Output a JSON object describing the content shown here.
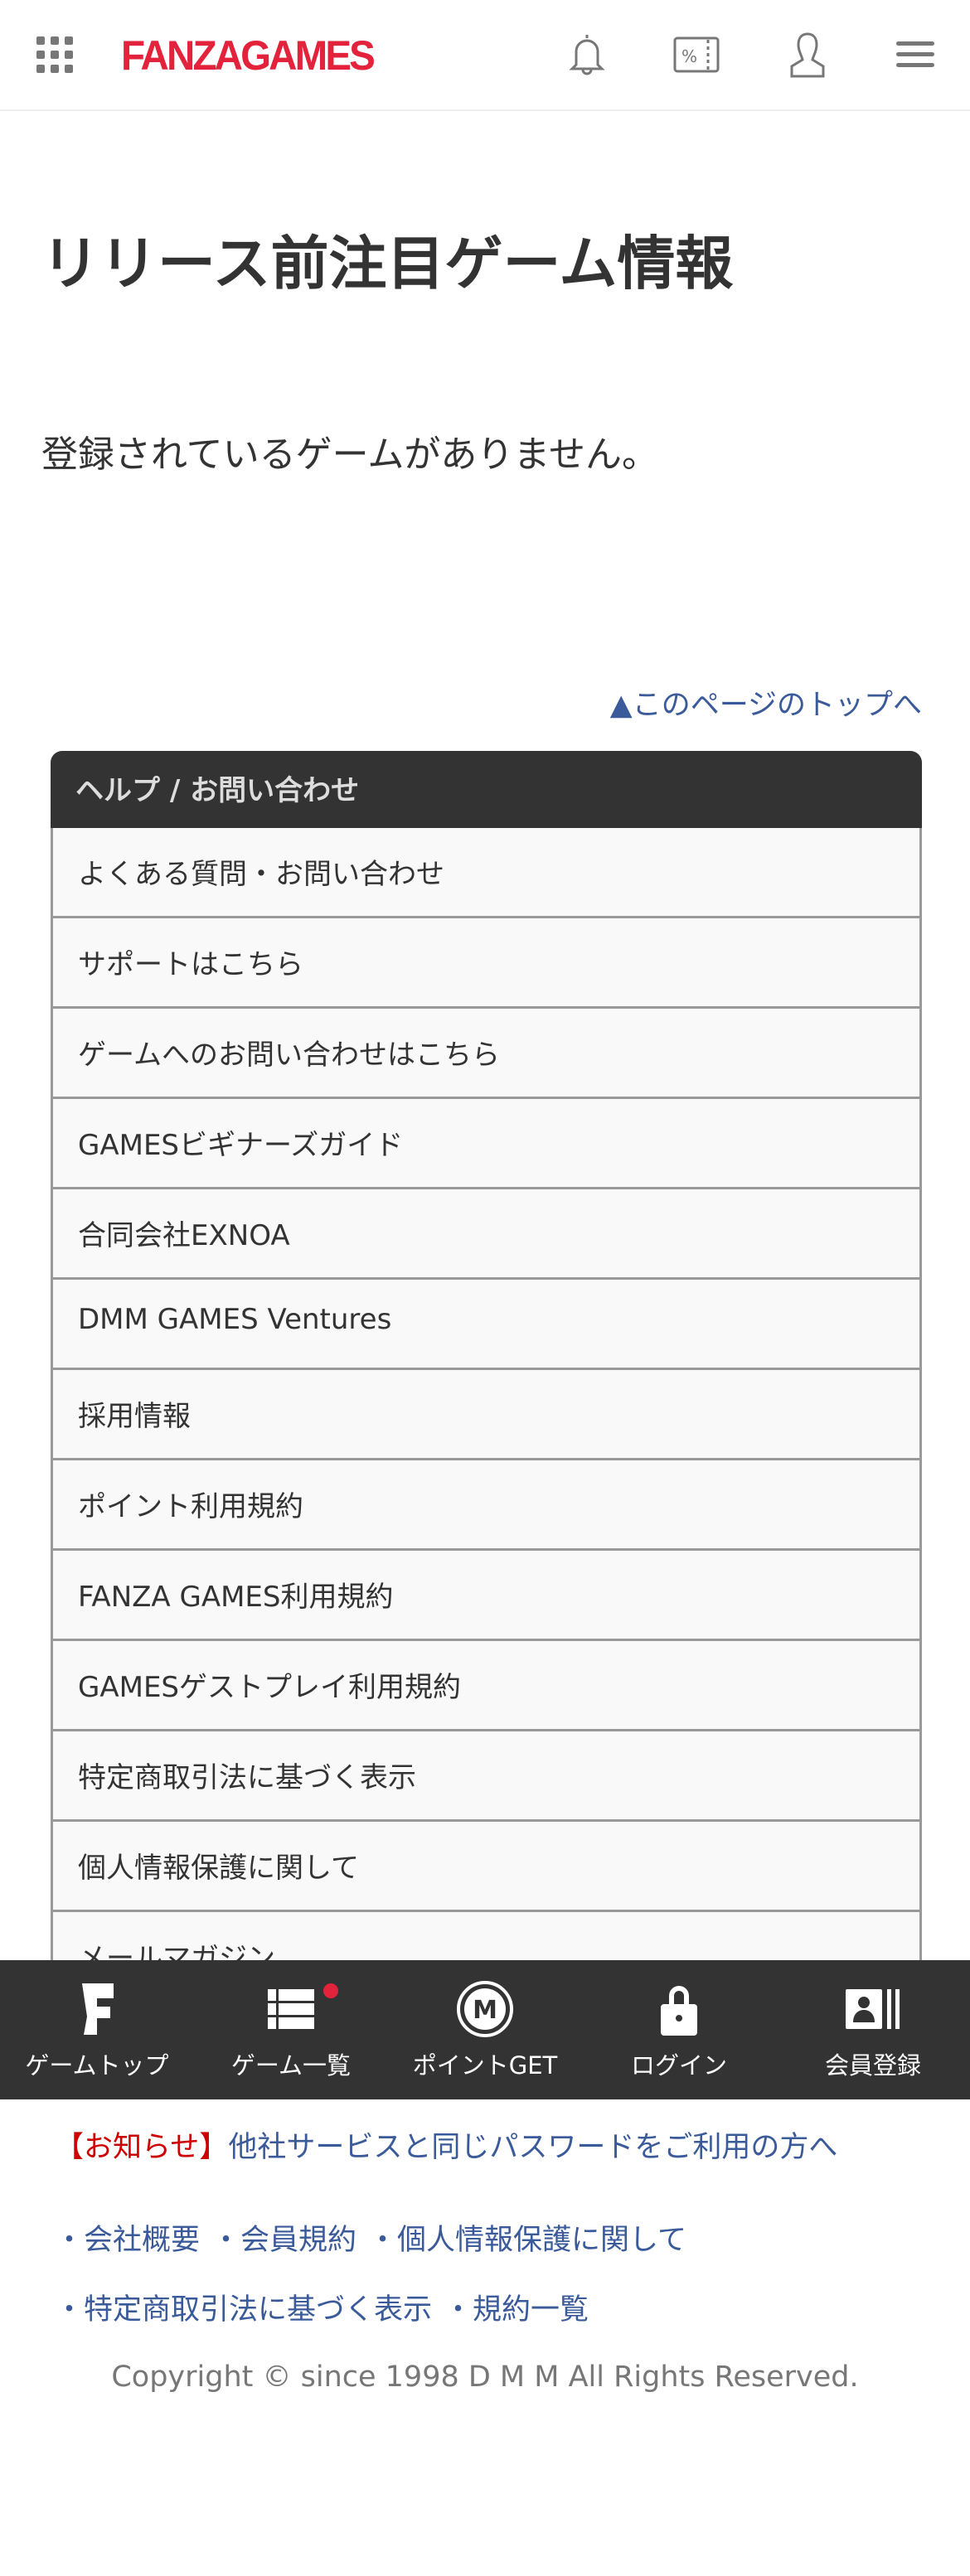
{
  "header": {
    "logo": "FANZAGAMES",
    "icons": [
      "grid-icon",
      "bell-icon",
      "coupon-icon",
      "user-icon",
      "menu-icon"
    ]
  },
  "main": {
    "title": "リリース前注目ゲーム情報",
    "empty_message": "登録されているゲームがありません。",
    "to_top": "▲このページのトップへ"
  },
  "help": {
    "title": "ヘルプ / お問い合わせ",
    "items": [
      "よくある質問・お問い合わせ",
      "サポートはこちら",
      "ゲームへのお問い合わせはこちら",
      "GAMESビギナーズガイド",
      "合同会社EXNOA",
      "DMM GAMES Ventures",
      "採用情報",
      "ポイント利用規約",
      "FANZA GAMES利用規約",
      "GAMESゲストプレイ利用規約",
      "特定商取引法に基づく表示",
      "個人情報保護に関して",
      "メールマガジン"
    ]
  },
  "bottom_nav": [
    {
      "label": "ゲームトップ",
      "icon": "fanza-f-icon"
    },
    {
      "label": "ゲーム一覧",
      "icon": "list-icon",
      "badge": true
    },
    {
      "label": "ポイントGET",
      "icon": "m-coin-icon"
    },
    {
      "label": "ログイン",
      "icon": "lock-icon"
    },
    {
      "label": "会員登録",
      "icon": "member-card-icon"
    }
  ],
  "footer": {
    "notice_tag": "【お知らせ】",
    "notice_text": "他社サービスと同じパスワードをご利用の方へ",
    "links_row1": [
      "・会社概要",
      "・会員規約",
      "・個人情報保護に関して"
    ],
    "links_row2": [
      "・特定商取引法に基づく表示",
      "・規約一覧"
    ],
    "copyright": "Copyright © since 1998 D M M All Rights Reserved."
  },
  "colors": {
    "brand": "#e3233b",
    "link": "#3a5a9a",
    "dark": "#333333"
  }
}
